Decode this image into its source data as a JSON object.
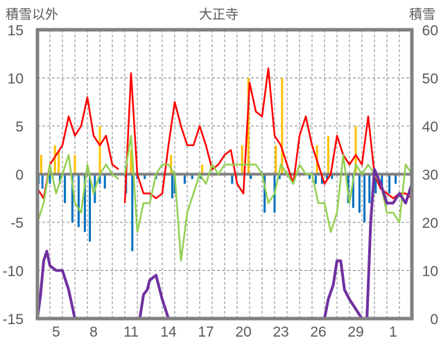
{
  "chart_data": {
    "type": "line",
    "title": "大正寺",
    "ylabel": "積雪以外",
    "y2label": "積雪",
    "ylim": [
      -15,
      15
    ],
    "y2lim": [
      0,
      60
    ],
    "yticks": [
      "15",
      "10",
      "5",
      "0",
      "-5",
      "-10",
      "-15"
    ],
    "y2ticks": [
      "60",
      "50",
      "40",
      "30",
      "20",
      "10",
      "0"
    ],
    "xlim": [
      0,
      30
    ],
    "xtick_positions": [
      1.5,
      4.5,
      7.5,
      10.5,
      13.5,
      16.5,
      19.5,
      22.5,
      25.5,
      28.5
    ],
    "xticks": [
      "5",
      "8",
      "11",
      "14",
      "17",
      "20",
      "23",
      "26",
      "29",
      "1"
    ],
    "grid": true,
    "colors": {
      "red": "#ff0000",
      "green": "#92d050",
      "blue": "#0070c0",
      "yellow": "#ffc000",
      "purple": "#7030a0",
      "axis": "#808080"
    },
    "series": [
      {
        "name": "red",
        "color": "#ff0000",
        "axis": "left",
        "x": [
          0,
          0.5,
          1,
          1.5,
          2,
          2.5,
          3,
          3.5,
          4,
          4.5,
          5,
          5.5,
          6,
          6.5,
          null,
          7,
          7.5,
          8,
          8.5,
          9,
          9.5,
          10,
          10.5,
          11,
          11.5,
          12,
          12.5,
          13,
          13.5,
          14,
          14.5,
          15,
          15.5,
          16,
          16.5,
          17,
          17.5,
          18,
          18.5,
          19,
          19.5,
          20,
          20.5,
          21,
          21.5,
          22,
          22.5,
          23,
          23.5,
          24,
          24.5,
          25,
          25.5,
          26,
          26.5,
          27,
          27.5,
          28,
          28.5,
          29,
          29.5,
          30
        ],
        "y": [
          -1.5,
          -2.5,
          1,
          2,
          3,
          6,
          4,
          5,
          8,
          4,
          3,
          4,
          1,
          0.5,
          null,
          -3,
          10.5,
          0,
          -2,
          -2,
          -2.5,
          -2,
          3,
          7.5,
          5,
          3,
          3,
          5,
          3,
          0.5,
          1,
          2,
          2.5,
          -1,
          -2,
          9.5,
          6.5,
          6,
          11,
          4,
          3,
          1,
          -1,
          4,
          6,
          3,
          1,
          -1,
          0,
          4,
          2,
          1,
          2,
          1,
          6,
          0,
          -1.5,
          -2,
          -2.5,
          -2,
          -2,
          -2.5
        ]
      },
      {
        "name": "green",
        "color": "#92d050",
        "axis": "left",
        "x": [
          0,
          0.5,
          1,
          1.5,
          2,
          2.5,
          3,
          3.5,
          4,
          4.5,
          5,
          5.5,
          6,
          6.5,
          null,
          7,
          7.5,
          8,
          8.5,
          9,
          9.5,
          10,
          10.5,
          11,
          11.5,
          12,
          12.5,
          13,
          13.5,
          14,
          14.5,
          15,
          15.5,
          16,
          16.5,
          17,
          17.5,
          18,
          18.5,
          19,
          19.5,
          20,
          20.5,
          21,
          21.5,
          22,
          22.5,
          23,
          23.5,
          24,
          24.5,
          25,
          25.5,
          26,
          26.5,
          27,
          27.5,
          28,
          28.5,
          29,
          29.5,
          30
        ],
        "y": [
          -5,
          -3,
          1,
          -2,
          0,
          2,
          -3,
          -4,
          1,
          -2,
          0,
          1,
          0,
          -0.5,
          null,
          0,
          4,
          -6,
          -3,
          -3,
          0,
          1,
          1,
          0,
          -9,
          -4,
          -2,
          0,
          -1,
          1,
          0,
          1,
          1,
          1,
          1,
          1,
          1,
          0,
          -3,
          -2,
          1,
          0,
          -1,
          1,
          0,
          0,
          -3,
          -3,
          -6,
          -4,
          2,
          -3,
          1,
          0,
          1,
          0,
          -1,
          -4,
          -4,
          -5,
          1,
          0
        ]
      },
      {
        "name": "purple",
        "color": "#7030a0",
        "axis": "right",
        "x": [
          0,
          0.25,
          0.5,
          0.75,
          1,
          1.5,
          2,
          2.5,
          3,
          8,
          8.2,
          8.5,
          8.8,
          9,
          9.5,
          10,
          10.5,
          23,
          23.3,
          23.7,
          24,
          24.3,
          24.6,
          25,
          25.5,
          26,
          26.4,
          26.7,
          27,
          27.5,
          28,
          28.5,
          29,
          29.5,
          30
        ],
        "y": [
          0,
          5,
          12,
          14,
          11,
          10,
          10,
          6,
          0,
          0,
          0,
          5,
          6,
          8,
          9,
          4,
          0,
          0,
          4,
          7,
          12,
          12,
          6,
          4,
          2,
          0,
          0,
          20,
          31,
          28,
          24,
          24,
          26,
          24,
          28
        ]
      }
    ],
    "bars": [
      {
        "name": "blue",
        "color": "#0070c0",
        "x": [
          0.1,
          0.4,
          1,
          1.8,
          2.2,
          2.8,
          3.3,
          3.8,
          4.2,
          4.6,
          5,
          5.4,
          7.1,
          7.6,
          8,
          8.6,
          9.5,
          10.8,
          11,
          11.8,
          12.4,
          13.1,
          15.6,
          17.1,
          18.2,
          19,
          19.4,
          21.8,
          22.3,
          22.8,
          23.2,
          23.6,
          24.9,
          25.3,
          25.8,
          26.2,
          26.6,
          27.1,
          27.6,
          28.2,
          28.7
        ],
        "y": [
          -1,
          -1.5,
          -1,
          -1,
          -3,
          -5,
          -5.5,
          -6,
          -7,
          -3,
          -1,
          -1.5,
          -2,
          -8,
          -0.5,
          -0.5,
          -0.5,
          -2.5,
          -2,
          -1,
          -0.5,
          -0.5,
          -1,
          -0.5,
          -4,
          -4,
          -0.5,
          -0.5,
          -1,
          -1,
          -0.5,
          -0.5,
          -3,
          -3.5,
          -4,
          -5,
          -3,
          -2,
          -1.5,
          -2,
          -1
        ]
      },
      {
        "name": "yellow",
        "color": "#ffc000",
        "x": [
          0.3,
          1.4,
          1.7,
          3,
          5,
          7.5,
          10.7,
          13.2,
          16.4,
          16.9,
          19.1,
          19.6,
          22.4,
          23.3,
          25.5
        ],
        "y": [
          2,
          3,
          2.5,
          2,
          5,
          2.5,
          2,
          1,
          3,
          10,
          3,
          10,
          3,
          4,
          5
        ]
      }
    ]
  }
}
